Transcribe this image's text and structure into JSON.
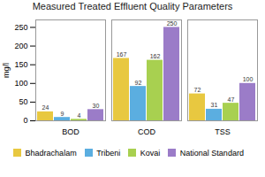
{
  "chart_data": {
    "type": "bar",
    "title": "Measured Treated Effluent Quality Parameters",
    "ylabel": "mg/l",
    "categories": [
      "BOD",
      "COD",
      "TSS"
    ],
    "series": [
      {
        "name": "Bhadrachalam",
        "color": "#E8C840",
        "values": [
          24,
          167,
          72
        ]
      },
      {
        "name": "Tribeni",
        "color": "#5BAEE0",
        "values": [
          9,
          92,
          31
        ]
      },
      {
        "name": "Kovai",
        "color": "#A8D050",
        "values": [
          4,
          162,
          47
        ]
      },
      {
        "name": "National Standard",
        "color": "#9B7CC8",
        "values": [
          30,
          250,
          100
        ]
      }
    ],
    "ylim": [
      0,
      270
    ],
    "yticks": [
      0,
      50,
      100,
      150,
      200,
      250
    ],
    "data_labels": true,
    "grid": false,
    "legend": "bottom"
  }
}
